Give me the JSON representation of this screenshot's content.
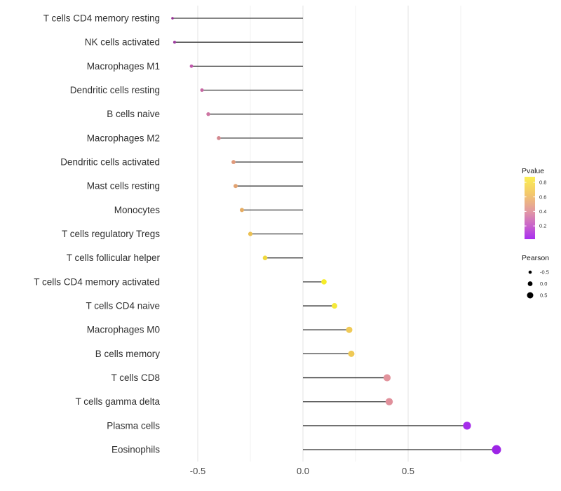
{
  "chart_data": {
    "type": "scatter",
    "subtype": "horizontal-lollipop",
    "title": "",
    "xlabel": "",
    "ylabel": "",
    "orientation": "horizontal",
    "grid": "vertical-only",
    "background": "#ffffff",
    "xlim": [
      -0.65,
      0.97
    ],
    "x_axis": {
      "ticks": [
        {
          "value": -0.5,
          "label": "-0.5"
        },
        {
          "value": 0.0,
          "label": "0.0"
        },
        {
          "value": 0.5,
          "label": "0.5"
        }
      ],
      "gridline_values": [
        -0.5,
        -0.25,
        0.0,
        0.25,
        0.5,
        0.75
      ]
    },
    "points": [
      {
        "label": "T cells CD4 memory resting",
        "pearson": -0.62,
        "pvalue_est": 0.05,
        "color": "#953093",
        "r": 1.8
      },
      {
        "label": "NK cells activated",
        "pearson": -0.61,
        "pvalue_est": 0.08,
        "color": "#9c3d9e",
        "r": 2.1
      },
      {
        "label": "Macrophages M1",
        "pearson": -0.53,
        "pvalue_est": 0.18,
        "color": "#bf57aa",
        "r": 2.4
      },
      {
        "label": "Dendritic cells resting",
        "pearson": -0.48,
        "pvalue_est": 0.25,
        "color": "#c768a4",
        "r": 2.5
      },
      {
        "label": "B cells naive",
        "pearson": -0.45,
        "pvalue_est": 0.3,
        "color": "#cd74a2",
        "r": 2.7
      },
      {
        "label": "Macrophages M2",
        "pearson": -0.4,
        "pvalue_est": 0.37,
        "color": "#d3888f",
        "r": 2.8
      },
      {
        "label": "Dendritic cells activated",
        "pearson": -0.33,
        "pvalue_est": 0.45,
        "color": "#e09a7b",
        "r": 2.9
      },
      {
        "label": "Mast cells resting",
        "pearson": -0.32,
        "pvalue_est": 0.48,
        "color": "#e2a270",
        "r": 3.0
      },
      {
        "label": "Monocytes",
        "pearson": -0.29,
        "pvalue_est": 0.52,
        "color": "#e5ac62",
        "r": 3.0
      },
      {
        "label": "T cells regulatory  Tregs",
        "pearson": -0.25,
        "pvalue_est": 0.6,
        "color": "#ebc052",
        "r": 3.1
      },
      {
        "label": "T cells follicular helper",
        "pearson": -0.18,
        "pvalue_est": 0.7,
        "color": "#f0d83c",
        "r": 3.3
      },
      {
        "label": "T cells CD4 memory activated",
        "pearson": 0.1,
        "pvalue_est": 0.83,
        "color": "#f6ec28",
        "r": 3.8
      },
      {
        "label": "T cells CD4 naive",
        "pearson": 0.15,
        "pvalue_est": 0.8,
        "color": "#f5e93a",
        "r": 4.0
      },
      {
        "label": "Macrophages M0",
        "pearson": 0.22,
        "pvalue_est": 0.63,
        "color": "#f0ca57",
        "r": 4.5
      },
      {
        "label": "B cells memory",
        "pearson": 0.23,
        "pvalue_est": 0.62,
        "color": "#efc955",
        "r": 4.5
      },
      {
        "label": "T cells CD8",
        "pearson": 0.4,
        "pvalue_est": 0.38,
        "color": "#e2939c",
        "r": 5.1
      },
      {
        "label": "T cells gamma delta",
        "pearson": 0.41,
        "pvalue_est": 0.37,
        "color": "#e0909b",
        "r": 5.2
      },
      {
        "label": "Plasma cells",
        "pearson": 0.78,
        "pvalue_est": 0.02,
        "color": "#a52cea",
        "r": 5.6
      },
      {
        "label": "Eosinophils",
        "pearson": 0.92,
        "pvalue_est": 0.01,
        "color": "#9d24e6",
        "r": 6.5
      }
    ],
    "legend_colorbar": {
      "title": "Pvalue",
      "tick_labels": [
        "0.8",
        "0.6",
        "0.4",
        "0.2"
      ],
      "tick_values": [
        0.8,
        0.6,
        0.4,
        0.2
      ],
      "range_top": 0.85,
      "range_bottom": 0.0,
      "gradient_stops": [
        {
          "offset": 0.0,
          "color": "#fbef52"
        },
        {
          "offset": 0.28,
          "color": "#f3c76d"
        },
        {
          "offset": 0.55,
          "color": "#e29aa2"
        },
        {
          "offset": 0.8,
          "color": "#c75fce"
        },
        {
          "offset": 1.0,
          "color": "#a92ff0"
        }
      ],
      "position": "right"
    },
    "legend_size": {
      "title": "Pearson",
      "entries": [
        {
          "label": "-0.5",
          "value": -0.5,
          "r": 2.3
        },
        {
          "label": "0.0",
          "value": 0.0,
          "r": 3.4
        },
        {
          "label": "0.5",
          "value": 0.5,
          "r": 4.5
        }
      ],
      "dot_color": "#000000",
      "position": "right"
    },
    "colors": {
      "grid_major": "#e3e3e3",
      "grid_minor": "#f0f0f0",
      "stem": "#3a3a3a",
      "axis_text": "#474747",
      "category_text": "#303030"
    }
  }
}
